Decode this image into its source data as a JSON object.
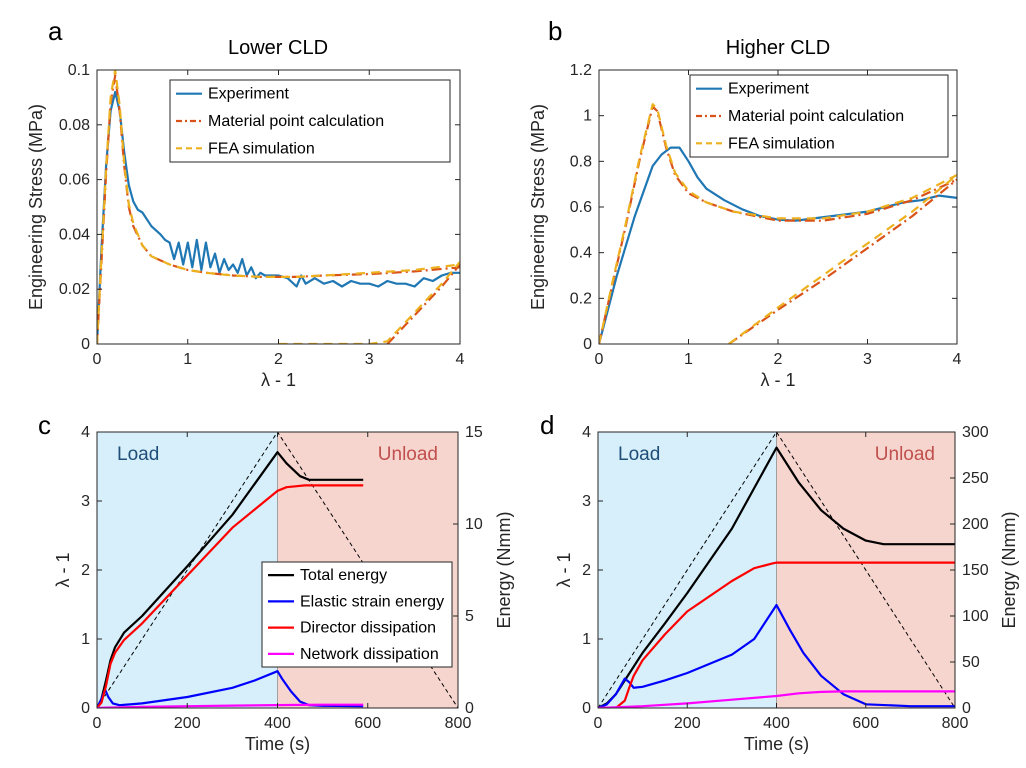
{
  "colors": {
    "experiment": "#1f77b4",
    "material": "#d95319",
    "fea": "#edb120",
    "total": "#000000",
    "elastic": "#0000ff",
    "director": "#ff0000",
    "network": "#ff00ff",
    "load_bg": "#d6effa",
    "unload_bg": "#f7d5cf",
    "load_text": "#1f4e79",
    "unload_text": "#c0504d"
  },
  "chart_data": [
    {
      "id": "a",
      "panel_label": "a",
      "type": "line",
      "title": "Lower CLD",
      "xlabel": "λ - 1",
      "ylabel": "Engineering Stress (MPa)",
      "xlim": [
        0,
        4
      ],
      "ylim": [
        0,
        0.1
      ],
      "xticks": [
        0,
        1,
        2,
        3,
        4
      ],
      "xtick_labels": [
        "0",
        "1",
        "2",
        "3",
        "4"
      ],
      "yticks": [
        0,
        0.02,
        0.04,
        0.06,
        0.08,
        0.1
      ],
      "ytick_labels": [
        "0",
        "0.02",
        "0.04",
        "0.06",
        "0.08",
        "0.1"
      ],
      "legend_position": "top-right",
      "series": [
        {
          "name": "Experiment",
          "color_key": "experiment",
          "style": "solid",
          "x": [
            0,
            0.05,
            0.1,
            0.15,
            0.2,
            0.25,
            0.3,
            0.35,
            0.4,
            0.45,
            0.5,
            0.6,
            0.7,
            0.75,
            0.8,
            0.85,
            0.9,
            0.95,
            1.0,
            1.05,
            1.1,
            1.15,
            1.2,
            1.25,
            1.3,
            1.35,
            1.4,
            1.45,
            1.5,
            1.55,
            1.6,
            1.65,
            1.7,
            1.75,
            1.8,
            1.85,
            1.9,
            2.0,
            2.1,
            2.2,
            2.25,
            2.3,
            2.4,
            2.5,
            2.6,
            2.7,
            2.8,
            2.9,
            3.0,
            3.1,
            3.2,
            3.3,
            3.4,
            3.5,
            3.6,
            3.7,
            3.8,
            3.9,
            4.0
          ],
          "y": [
            0,
            0.035,
            0.065,
            0.085,
            0.092,
            0.085,
            0.07,
            0.058,
            0.052,
            0.049,
            0.048,
            0.043,
            0.04,
            0.038,
            0.037,
            0.031,
            0.037,
            0.029,
            0.037,
            0.028,
            0.038,
            0.027,
            0.037,
            0.028,
            0.033,
            0.026,
            0.031,
            0.027,
            0.029,
            0.026,
            0.031,
            0.025,
            0.028,
            0.024,
            0.026,
            0.025,
            0.025,
            0.025,
            0.024,
            0.021,
            0.025,
            0.022,
            0.024,
            0.022,
            0.023,
            0.021,
            0.023,
            0.022,
            0.022,
            0.021,
            0.023,
            0.022,
            0.022,
            0.021,
            0.024,
            0.023,
            0.025,
            0.026,
            0.026
          ]
        },
        {
          "name": "Material point calculation",
          "color_key": "material",
          "style": "dashdot",
          "x": [
            0,
            0.05,
            0.1,
            0.15,
            0.2,
            0.25,
            0.3,
            0.35,
            0.4,
            0.5,
            0.6,
            0.8,
            1.0,
            1.2,
            1.5,
            1.8,
            2.0,
            2.2,
            2.5,
            3.0,
            3.5,
            4.0,
            null,
            3.2,
            3.4,
            3.6,
            3.8,
            4.0
          ],
          "y": [
            0,
            0.03,
            0.062,
            0.088,
            0.098,
            0.085,
            0.065,
            0.05,
            0.043,
            0.036,
            0.032,
            0.029,
            0.027,
            0.026,
            0.025,
            0.0245,
            0.0245,
            0.0245,
            0.025,
            0.0255,
            0.0265,
            0.028,
            null,
            0,
            0.007,
            0.014,
            0.021,
            0.029
          ]
        },
        {
          "name": "FEA simulation",
          "color_key": "fea",
          "style": "dashed",
          "x": [
            0,
            0.05,
            0.1,
            0.15,
            0.2,
            0.25,
            0.3,
            0.35,
            0.4,
            0.5,
            0.6,
            0.8,
            1.0,
            1.2,
            1.5,
            1.8,
            2.0,
            2.2,
            2.5,
            3.0,
            3.5,
            4.0,
            null,
            2.0,
            2.5,
            3.0,
            3.2,
            3.4,
            3.6,
            3.8,
            4.0
          ],
          "y": [
            0,
            0.032,
            0.064,
            0.09,
            0.1,
            0.087,
            0.066,
            0.051,
            0.044,
            0.036,
            0.032,
            0.029,
            0.027,
            0.026,
            0.025,
            0.0245,
            0.0245,
            0.0245,
            0.025,
            0.026,
            0.027,
            0.029,
            null,
            0,
            0,
            0,
            0.001,
            0.008,
            0.015,
            0.022,
            0.03
          ]
        }
      ]
    },
    {
      "id": "b",
      "panel_label": "b",
      "type": "line",
      "title": "Higher CLD",
      "xlabel": "λ - 1",
      "ylabel": "Engineering Stress (MPa)",
      "xlim": [
        0,
        4
      ],
      "ylim": [
        0,
        1.2
      ],
      "xticks": [
        0,
        1,
        2,
        3,
        4
      ],
      "xtick_labels": [
        "0",
        "1",
        "2",
        "3",
        "4"
      ],
      "yticks": [
        0,
        0.2,
        0.4,
        0.6,
        0.8,
        1.0,
        1.2
      ],
      "ytick_labels": [
        "0",
        "0.2",
        "0.4",
        "0.6",
        "0.8",
        "1",
        "1.2"
      ],
      "legend_position": "top-right",
      "series": [
        {
          "name": "Experiment",
          "color_key": "experiment",
          "style": "solid",
          "x": [
            0,
            0.2,
            0.4,
            0.6,
            0.7,
            0.8,
            0.9,
            1.0,
            1.1,
            1.2,
            1.4,
            1.6,
            1.8,
            2.0,
            2.2,
            2.4,
            2.6,
            2.8,
            3.0,
            3.2,
            3.4,
            3.6,
            3.8,
            4.0
          ],
          "y": [
            0,
            0.3,
            0.56,
            0.78,
            0.83,
            0.86,
            0.86,
            0.8,
            0.73,
            0.68,
            0.63,
            0.59,
            0.56,
            0.545,
            0.54,
            0.55,
            0.56,
            0.57,
            0.58,
            0.6,
            0.62,
            0.63,
            0.65,
            0.64
          ]
        },
        {
          "name": "Material point calculation",
          "color_key": "material",
          "style": "dashdot",
          "x": [
            0,
            0.15,
            0.3,
            0.45,
            0.6,
            0.65,
            0.75,
            0.85,
            1.0,
            1.2,
            1.5,
            2.0,
            2.5,
            3.0,
            3.5,
            4.0,
            null,
            1.45,
            2.0,
            2.5,
            3.0,
            3.5,
            4.0
          ],
          "y": [
            0,
            0.26,
            0.52,
            0.8,
            1.04,
            1.02,
            0.86,
            0.74,
            0.66,
            0.62,
            0.58,
            0.54,
            0.54,
            0.57,
            0.63,
            0.72,
            null,
            0,
            0.15,
            0.28,
            0.42,
            0.56,
            0.72
          ]
        },
        {
          "name": "FEA simulation",
          "color_key": "fea",
          "style": "dashed",
          "x": [
            0,
            0.15,
            0.3,
            0.45,
            0.6,
            0.65,
            0.75,
            0.85,
            1.0,
            1.2,
            1.5,
            2.0,
            2.5,
            3.0,
            3.5,
            4.0,
            null,
            1.45,
            2.0,
            2.5,
            3.0,
            3.5,
            4.0
          ],
          "y": [
            0,
            0.27,
            0.53,
            0.81,
            1.05,
            1.03,
            0.87,
            0.75,
            0.67,
            0.62,
            0.58,
            0.55,
            0.55,
            0.58,
            0.64,
            0.74,
            null,
            0,
            0.16,
            0.3,
            0.44,
            0.58,
            0.74
          ]
        }
      ]
    },
    {
      "id": "c",
      "panel_label": "c",
      "type": "line",
      "xlabel": "Time (s)",
      "ylabel": "λ - 1",
      "ylabel_right": "Energy (Nmm)",
      "xlim": [
        0,
        800
      ],
      "ylim": [
        0,
        4
      ],
      "ylim_right": [
        0,
        15
      ],
      "xticks": [
        0,
        200,
        400,
        600,
        800
      ],
      "xtick_labels": [
        "0",
        "200",
        "400",
        "600",
        "800"
      ],
      "yticks": [
        0,
        1,
        2,
        3,
        4
      ],
      "ytick_labels": [
        "0",
        "1",
        "2",
        "3",
        "4"
      ],
      "yticks_right": [
        0,
        5,
        10,
        15
      ],
      "ytick_labels_right": [
        "0",
        "5",
        "10",
        "15"
      ],
      "regions": [
        {
          "label": "Load",
          "from": 0,
          "to": 400,
          "color_key": "load_bg",
          "text_color_key": "load_text"
        },
        {
          "label": "Unload",
          "from": 400,
          "to": 800,
          "color_key": "unload_bg",
          "text_color_key": "unload_text"
        }
      ],
      "legend_position": "center-right",
      "stretch_series": {
        "x": [
          0,
          400,
          800
        ],
        "y": [
          0,
          4,
          0
        ],
        "color_key": "total",
        "style": "dashed"
      },
      "series": [
        {
          "name": "Total energy",
          "color_key": "total",
          "axis": "right",
          "x": [
            0,
            10,
            20,
            30,
            40,
            60,
            100,
            200,
            300,
            400,
            420,
            450,
            470,
            500,
            590
          ],
          "y": [
            0,
            0.5,
            1.5,
            2.6,
            3.3,
            4.1,
            5.0,
            7.7,
            10.5,
            13.9,
            13.3,
            12.6,
            12.4,
            12.4,
            12.4
          ]
        },
        {
          "name": "Elastic strain energy",
          "color_key": "elastic",
          "axis": "right",
          "x": [
            0,
            10,
            18,
            25,
            35,
            50,
            100,
            200,
            300,
            350,
            400,
            410,
            430,
            450,
            470,
            500,
            590
          ],
          "y": [
            0,
            0.5,
            1.0,
            0.6,
            0.25,
            0.15,
            0.25,
            0.6,
            1.1,
            1.5,
            2.0,
            1.6,
            0.9,
            0.35,
            0.15,
            0.12,
            0.1
          ]
        },
        {
          "name": "Director dissipation",
          "color_key": "director",
          "axis": "right",
          "x": [
            0,
            10,
            20,
            30,
            40,
            60,
            100,
            200,
            300,
            400,
            420,
            440,
            460,
            480,
            500,
            590
          ],
          "y": [
            0,
            0.3,
            1.2,
            2.4,
            3.0,
            3.7,
            4.6,
            7.2,
            9.8,
            11.8,
            12.0,
            12.05,
            12.1,
            12.1,
            12.1,
            12.1
          ]
        },
        {
          "name": "Network dissipation",
          "color_key": "network",
          "axis": "right",
          "x": [
            0,
            20,
            50,
            100,
            200,
            300,
            400,
            450,
            500,
            590
          ],
          "y": [
            0,
            0.02,
            0.04,
            0.06,
            0.1,
            0.13,
            0.16,
            0.17,
            0.18,
            0.18
          ]
        }
      ]
    },
    {
      "id": "d",
      "panel_label": "d",
      "type": "line",
      "xlabel": "Time (s)",
      "ylabel": "λ - 1",
      "ylabel_right": "Energy (Nmm)",
      "xlim": [
        0,
        800
      ],
      "ylim": [
        0,
        4
      ],
      "ylim_right": [
        0,
        300
      ],
      "xticks": [
        0,
        200,
        400,
        600,
        800
      ],
      "xtick_labels": [
        "0",
        "200",
        "400",
        "600",
        "800"
      ],
      "yticks": [
        0,
        1,
        2,
        3,
        4
      ],
      "ytick_labels": [
        "0",
        "1",
        "2",
        "3",
        "4"
      ],
      "yticks_right": [
        0,
        50,
        100,
        150,
        200,
        250,
        300
      ],
      "ytick_labels_right": [
        "0",
        "50",
        "100",
        "150",
        "200",
        "250",
        "300"
      ],
      "regions": [
        {
          "label": "Load",
          "from": 0,
          "to": 400,
          "color_key": "load_bg",
          "text_color_key": "load_text"
        },
        {
          "label": "Unload",
          "from": 400,
          "to": 800,
          "color_key": "unload_bg",
          "text_color_key": "unload_text"
        }
      ],
      "stretch_series": {
        "x": [
          0,
          400,
          800
        ],
        "y": [
          0,
          4,
          0
        ],
        "color_key": "total",
        "style": "dashed"
      },
      "series": [
        {
          "name": "Total energy",
          "color_key": "total",
          "axis": "right",
          "x": [
            0,
            20,
            40,
            60,
            80,
            100,
            150,
            200,
            300,
            400,
            450,
            500,
            550,
            600,
            640,
            700,
            800
          ],
          "y": [
            0,
            5,
            15,
            30,
            45,
            60,
            92,
            125,
            195,
            283,
            245,
            215,
            195,
            182,
            178,
            178,
            178
          ]
        },
        {
          "name": "Elastic strain energy",
          "color_key": "elastic",
          "axis": "right",
          "x": [
            0,
            20,
            40,
            60,
            70,
            80,
            100,
            150,
            200,
            300,
            350,
            400,
            430,
            460,
            500,
            550,
            600,
            700,
            800
          ],
          "y": [
            0,
            4,
            15,
            32,
            28,
            22,
            23,
            30,
            38,
            58,
            75,
            112,
            85,
            60,
            35,
            15,
            4,
            2,
            2
          ]
        },
        {
          "name": "Director dissipation",
          "color_key": "director",
          "axis": "right",
          "x": [
            0,
            40,
            60,
            70,
            80,
            100,
            150,
            200,
            300,
            350,
            390,
            400,
            500,
            600,
            700,
            800
          ],
          "y": [
            0,
            0,
            8,
            22,
            35,
            52,
            80,
            105,
            138,
            152,
            157,
            158,
            158,
            158,
            158,
            158
          ]
        },
        {
          "name": "Network dissipation",
          "color_key": "network",
          "axis": "right",
          "x": [
            0,
            50,
            100,
            200,
            300,
            400,
            450,
            500,
            550,
            600,
            700,
            800
          ],
          "y": [
            0,
            1,
            2,
            5,
            9,
            13,
            16,
            17.5,
            18,
            18,
            18,
            18
          ]
        }
      ]
    }
  ]
}
